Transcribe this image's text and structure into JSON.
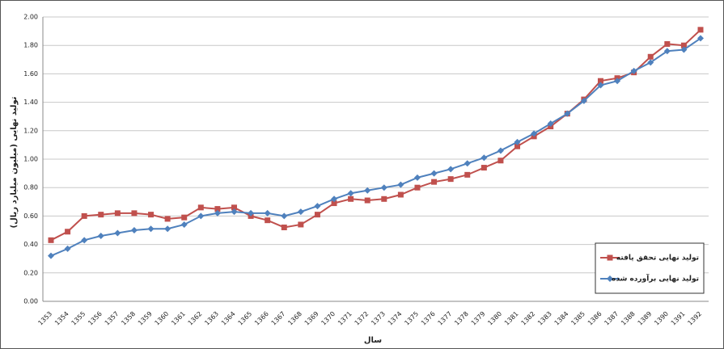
{
  "chart_data": {
    "type": "line",
    "y_label": "تولید نهایی (میلیون میلیارد ریال)",
    "x_label": "سال",
    "categories": [
      "1353",
      "1354",
      "1355",
      "1356",
      "1357",
      "1358",
      "1359",
      "1360",
      "1361",
      "1362",
      "1363",
      "1364",
      "1365",
      "1366",
      "1367",
      "1368",
      "1369",
      "1370",
      "1371",
      "1372",
      "1373",
      "1374",
      "1375",
      "1376",
      "1377",
      "1378",
      "1379",
      "1380",
      "1381",
      "1382",
      "1383",
      "1384",
      "1385",
      "1386",
      "1387",
      "1388",
      "1389",
      "1390",
      "1391",
      "1392"
    ],
    "series": [
      {
        "name": "تولید نهایی تحقق یافته",
        "color": "#c0504d",
        "marker": "square",
        "values": [
          0.43,
          0.49,
          0.6,
          0.61,
          0.62,
          0.62,
          0.61,
          0.58,
          0.59,
          0.66,
          0.65,
          0.66,
          0.6,
          0.57,
          0.52,
          0.54,
          0.61,
          0.69,
          0.72,
          0.71,
          0.72,
          0.75,
          0.8,
          0.84,
          0.86,
          0.89,
          0.94,
          0.99,
          1.09,
          1.16,
          1.23,
          1.32,
          1.42,
          1.55,
          1.57,
          1.61,
          1.72,
          1.81,
          1.8,
          1.91
        ]
      },
      {
        "name": "تولید نهایی برآورده شده",
        "color": "#4f81bd",
        "marker": "diamond",
        "values": [
          0.32,
          0.37,
          0.43,
          0.46,
          0.48,
          0.5,
          0.51,
          0.51,
          0.54,
          0.6,
          0.62,
          0.63,
          0.62,
          0.62,
          0.6,
          0.63,
          0.67,
          0.72,
          0.76,
          0.78,
          0.8,
          0.82,
          0.87,
          0.9,
          0.93,
          0.97,
          1.01,
          1.06,
          1.12,
          1.18,
          1.25,
          1.32,
          1.41,
          1.52,
          1.55,
          1.62,
          1.68,
          1.76,
          1.77,
          1.85
        ]
      }
    ],
    "ylim": [
      0,
      2
    ],
    "yticks": [
      {
        "value": 0,
        "label": "0.00"
      },
      {
        "value": 0.2,
        "label": "0.20"
      },
      {
        "value": 0.4,
        "label": "0.40"
      },
      {
        "value": 0.6,
        "label": "0.60"
      },
      {
        "value": 0.8,
        "label": "0.80"
      },
      {
        "value": 1,
        "label": "1.00"
      },
      {
        "value": 1.2,
        "label": "1.20"
      },
      {
        "value": 1.4,
        "label": "1.40"
      },
      {
        "value": 1.6,
        "label": "1.60"
      },
      {
        "value": 1.8,
        "label": "1.80"
      },
      {
        "value": 2,
        "label": "2.00"
      }
    ],
    "grid": true
  }
}
